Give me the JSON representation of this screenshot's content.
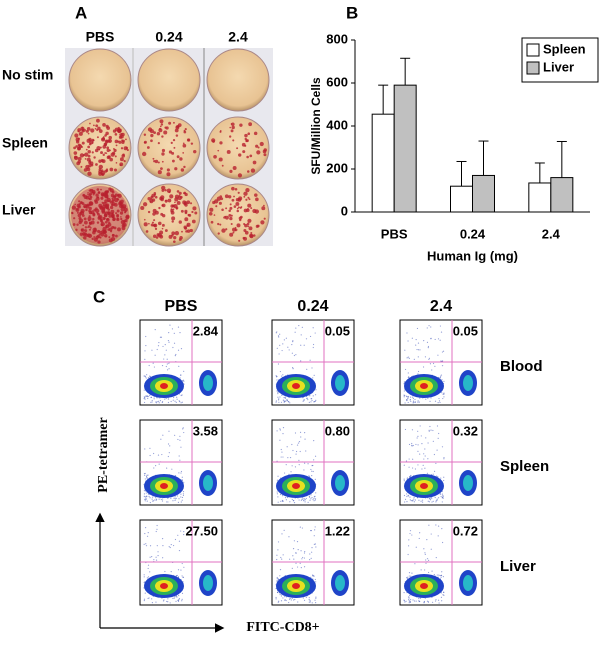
{
  "panel_a": {
    "label": "A",
    "columns": [
      "PBS",
      "0.24",
      "2.4"
    ],
    "rows": [
      "No stim",
      "Spleen",
      "Liver"
    ]
  },
  "chart_data": {
    "type": "bar",
    "label": "B",
    "categories": [
      "PBS",
      "0.24",
      "2.4"
    ],
    "x_label": "Human Ig (mg)",
    "y_label": "SFU/Million Cells",
    "ylim": [
      0,
      800
    ],
    "yticks": [
      0,
      200,
      400,
      600,
      800
    ],
    "legend": "top-right",
    "series": [
      {
        "name": "Spleen",
        "color": "#ffffff",
        "values": [
          455,
          120,
          135
        ],
        "errors": [
          135,
          115,
          93
        ]
      },
      {
        "name": "Liver",
        "color": "#c0c0c0",
        "values": [
          590,
          170,
          160
        ],
        "errors": [
          125,
          160,
          168
        ]
      }
    ]
  },
  "panel_c": {
    "label": "C",
    "columns": [
      "PBS",
      "0.24",
      "2.4"
    ],
    "rows": [
      "Blood",
      "Spleen",
      "Liver"
    ],
    "values": [
      [
        "2.84",
        "0.05",
        "0.05"
      ],
      [
        "3.58",
        "0.80",
        "0.32"
      ],
      [
        "27.50",
        "1.22",
        "0.72"
      ]
    ],
    "y_label": "PE-tetramer",
    "x_label": "FITC-CD8+"
  }
}
